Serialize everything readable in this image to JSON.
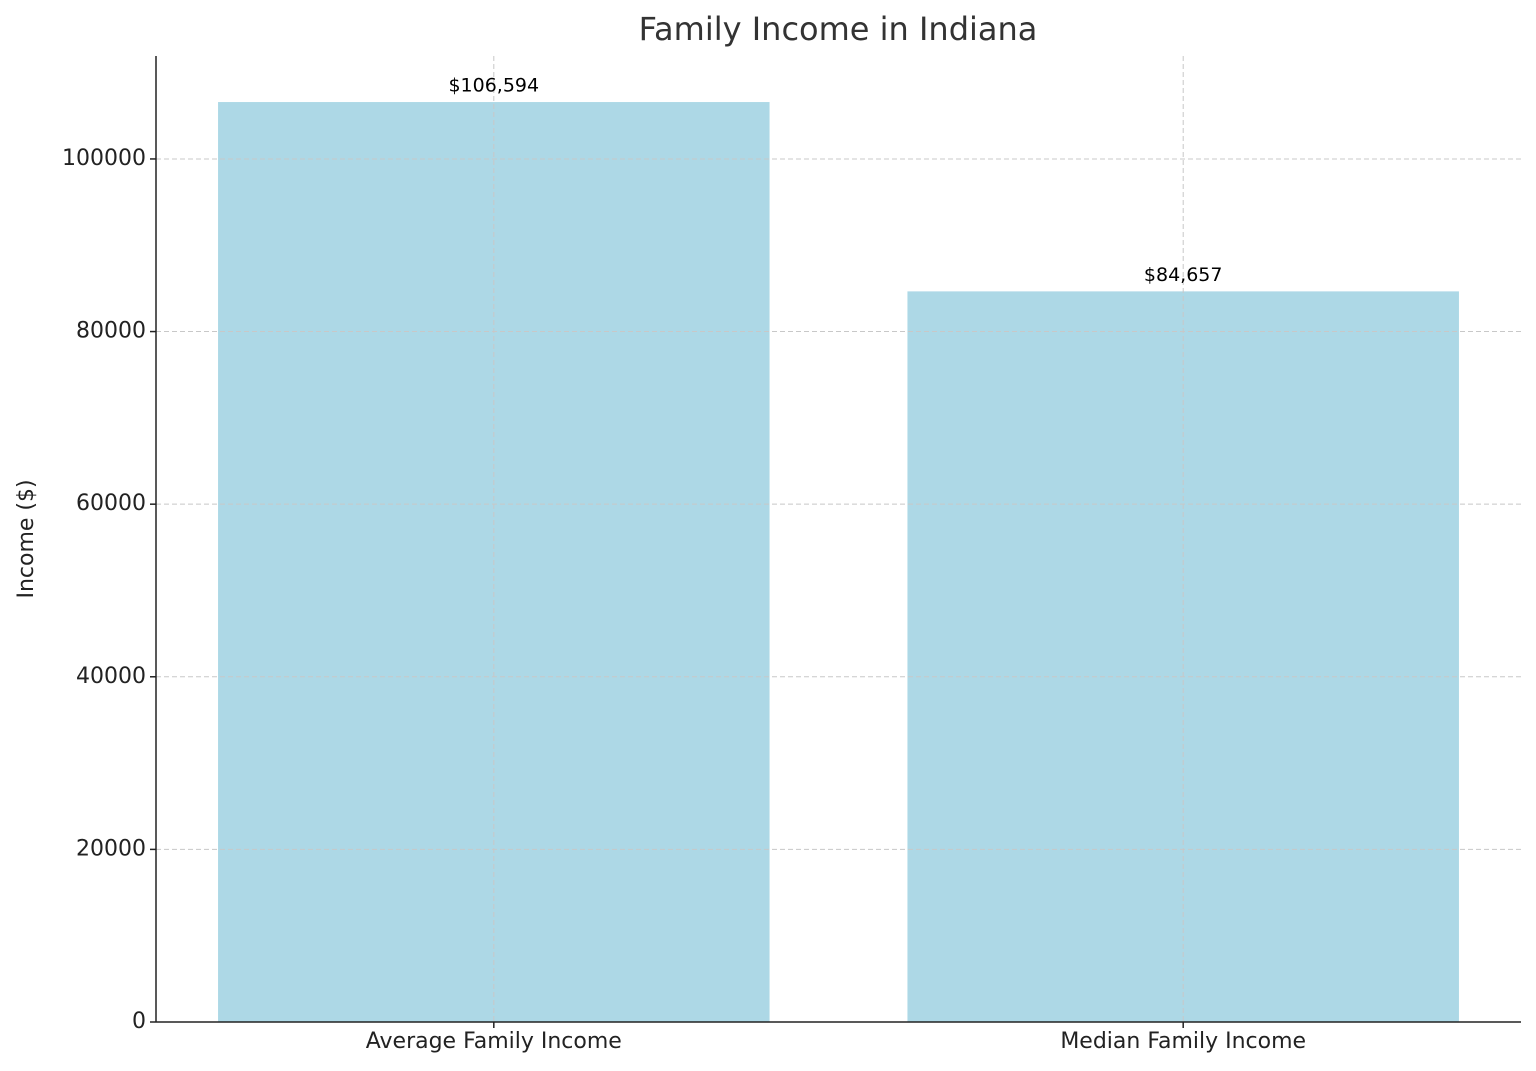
{
  "chart_data": {
    "type": "bar",
    "title": "Family Income in Indiana",
    "y_label": "Income ($)",
    "categories": [
      "Average Family Income",
      "Median Family Income"
    ],
    "values": [
      106594,
      84657
    ],
    "value_labels": [
      "$106,594",
      "$84,657"
    ],
    "color": "#add8e6",
    "ylim": [
      0,
      111929
    ],
    "yticks": [
      0,
      20000,
      40000,
      60000,
      80000,
      100000
    ],
    "grid": true
  }
}
